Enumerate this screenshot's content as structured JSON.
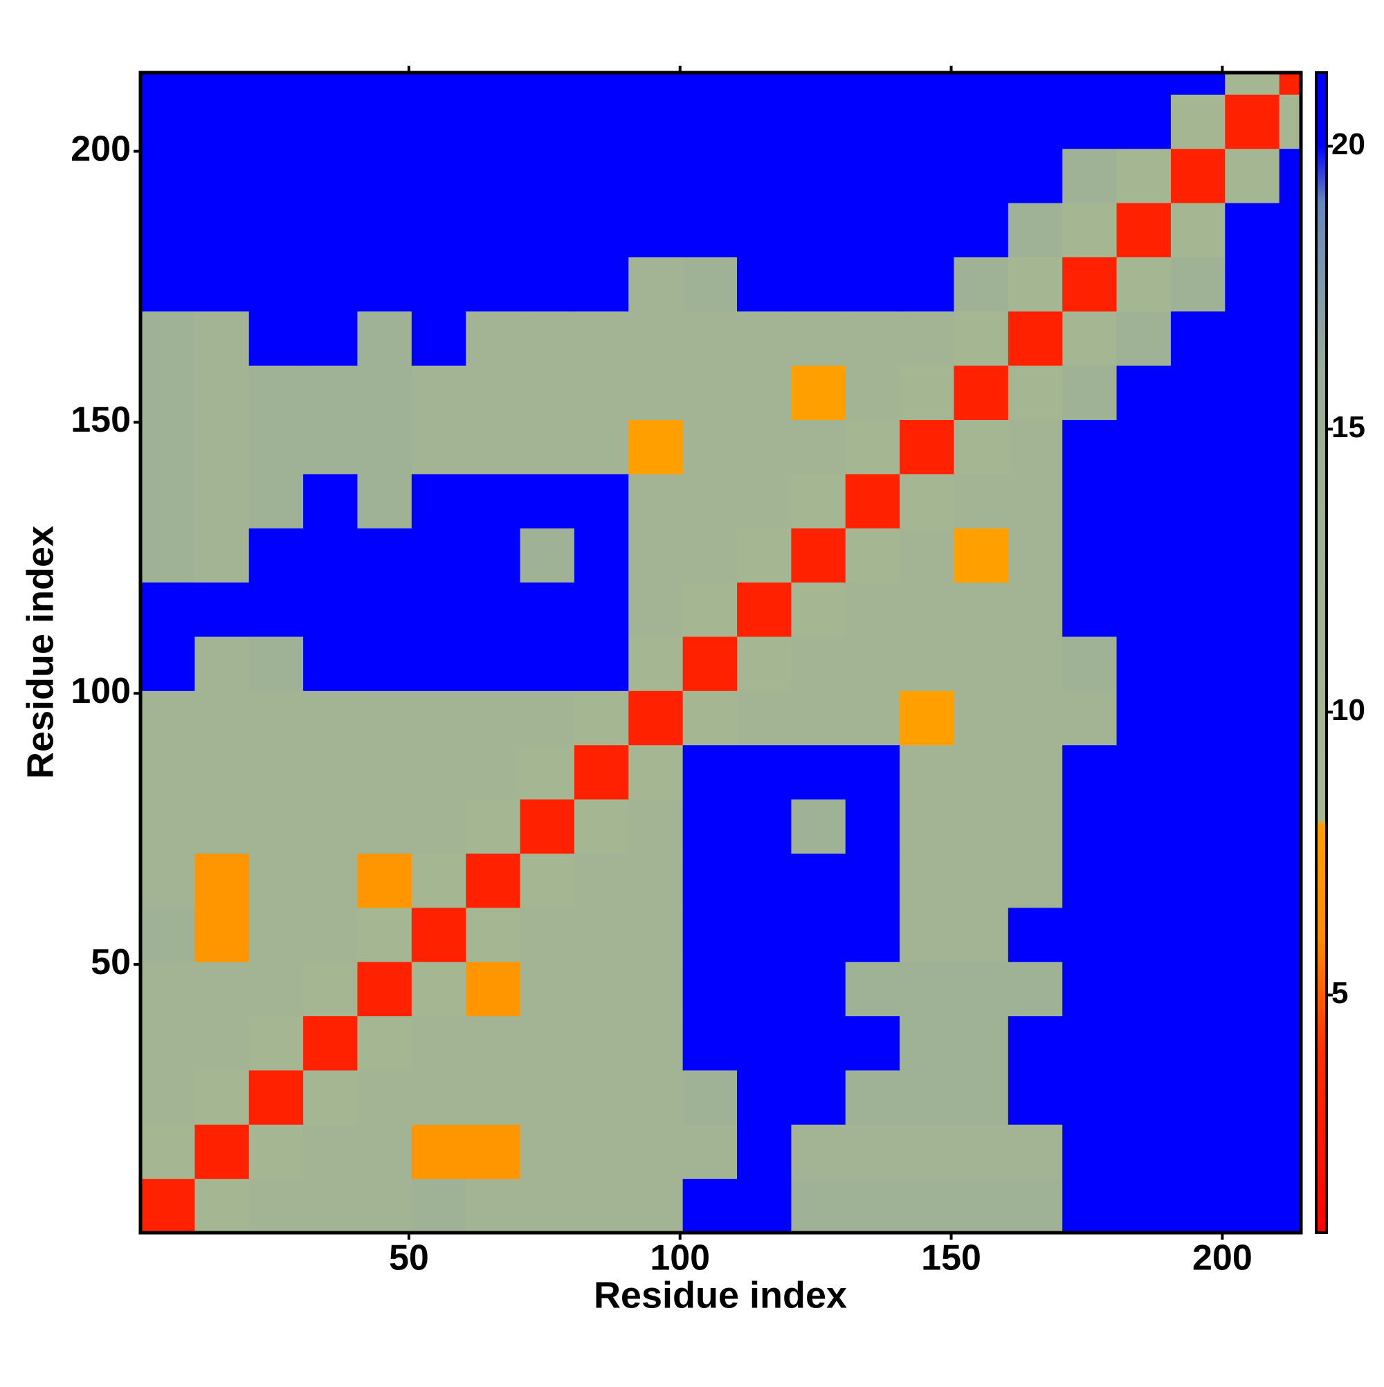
{
  "chart_data": {
    "type": "heatmap",
    "x_label": "Residue index",
    "y_label": "Residue index",
    "bins": [
      0.5,
      10.5,
      20.5,
      30.5,
      40.5,
      50.5,
      60.5,
      70.5,
      80.5,
      90.5,
      100.5,
      110.5,
      120.5,
      130.5,
      140.5,
      150.5,
      160.5,
      170.5,
      180.5,
      190.5,
      200.5,
      210.5,
      214.5
    ],
    "xlim": [
      0.5,
      214.5
    ],
    "ylim": [
      0.5,
      214.5
    ],
    "xticks": [
      50,
      100,
      150,
      200
    ],
    "yticks": [
      50,
      100,
      150,
      200
    ],
    "clim": [
      0.8,
      21.3
    ],
    "cticks": [
      5,
      10,
      15,
      20
    ],
    "colorscale": [
      [
        0.8,
        "#ff0000"
      ],
      [
        4,
        "#ff3000"
      ],
      [
        6,
        "#ff8c00"
      ],
      [
        8,
        "#ffa000"
      ],
      [
        8.1,
        "#a9b98f"
      ],
      [
        16,
        "#9aae9a"
      ],
      [
        19,
        "#6688bb"
      ],
      [
        20,
        "#0000ff"
      ],
      [
        21.3,
        "#0000ff"
      ]
    ],
    "z": [
      [
        3,
        10,
        12,
        12,
        12,
        13,
        12,
        12,
        12,
        12,
        21,
        21,
        13,
        13,
        13,
        13,
        13,
        21,
        21,
        21,
        21,
        21
      ],
      [
        10,
        3,
        10,
        12,
        12,
        7,
        7,
        12,
        12,
        12,
        12,
        21,
        12,
        12,
        12,
        12,
        12,
        21,
        21,
        21,
        21,
        21
      ],
      [
        12,
        10,
        3,
        10,
        12,
        12,
        12,
        12,
        12,
        12,
        13,
        21,
        21,
        13,
        13,
        13,
        21,
        21,
        21,
        21,
        21,
        21
      ],
      [
        12,
        12,
        10,
        3,
        10,
        12,
        12,
        12,
        12,
        12,
        21,
        21,
        21,
        21,
        13,
        13,
        21,
        21,
        21,
        21,
        21,
        21
      ],
      [
        12,
        12,
        12,
        10,
        3,
        10,
        7,
        12,
        12,
        12,
        21,
        21,
        21,
        13,
        13,
        13,
        13,
        21,
        21,
        21,
        21,
        21
      ],
      [
        13,
        7,
        12,
        12,
        10,
        3,
        10,
        12,
        12,
        12,
        21,
        21,
        21,
        21,
        12,
        12,
        21,
        21,
        21,
        21,
        21,
        21
      ],
      [
        12,
        7,
        12,
        12,
        7,
        10,
        3,
        10,
        12,
        12,
        21,
        21,
        21,
        21,
        12,
        12,
        12,
        21,
        21,
        21,
        21,
        21
      ],
      [
        12,
        12,
        12,
        12,
        12,
        12,
        10,
        3,
        10,
        12,
        21,
        21,
        13,
        21,
        12,
        12,
        12,
        21,
        21,
        21,
        21,
        21
      ],
      [
        12,
        12,
        12,
        12,
        12,
        12,
        12,
        10,
        3,
        10,
        21,
        21,
        21,
        21,
        12,
        12,
        12,
        21,
        21,
        21,
        21,
        21
      ],
      [
        12,
        12,
        12,
        12,
        12,
        12,
        12,
        12,
        10,
        3,
        10,
        12,
        12,
        12,
        8,
        12,
        12,
        12,
        21,
        21,
        21,
        21
      ],
      [
        21,
        12,
        13,
        21,
        21,
        21,
        21,
        21,
        21,
        10,
        3,
        10,
        12,
        12,
        12,
        12,
        12,
        13,
        21,
        21,
        21,
        21
      ],
      [
        21,
        21,
        21,
        21,
        21,
        21,
        21,
        21,
        21,
        12,
        10,
        3,
        10,
        12,
        12,
        12,
        12,
        21,
        21,
        21,
        21,
        21
      ],
      [
        13,
        12,
        21,
        21,
        21,
        21,
        21,
        13,
        21,
        12,
        12,
        10,
        3,
        10,
        12,
        8,
        12,
        21,
        21,
        21,
        21,
        21
      ],
      [
        13,
        12,
        13,
        21,
        13,
        21,
        21,
        21,
        21,
        12,
        12,
        12,
        10,
        3,
        10,
        12,
        12,
        21,
        21,
        21,
        21,
        21
      ],
      [
        13,
        12,
        13,
        13,
        13,
        12,
        12,
        12,
        12,
        8,
        12,
        12,
        12,
        10,
        3,
        10,
        12,
        21,
        21,
        21,
        21,
        21
      ],
      [
        13,
        12,
        13,
        13,
        13,
        12,
        12,
        12,
        12,
        12,
        12,
        12,
        8,
        12,
        10,
        3,
        10,
        13,
        21,
        21,
        21,
        21
      ],
      [
        13,
        12,
        21,
        21,
        13,
        21,
        12,
        12,
        12,
        12,
        12,
        12,
        12,
        12,
        12,
        10,
        3,
        10,
        13,
        21,
        21,
        21
      ],
      [
        21,
        21,
        21,
        21,
        21,
        21,
        21,
        21,
        21,
        12,
        13,
        21,
        21,
        21,
        21,
        13,
        10,
        3,
        10,
        13,
        21,
        21
      ],
      [
        21,
        21,
        21,
        21,
        21,
        21,
        21,
        21,
        21,
        21,
        21,
        21,
        21,
        21,
        21,
        21,
        13,
        10,
        3,
        10,
        21,
        21
      ],
      [
        21,
        21,
        21,
        21,
        21,
        21,
        21,
        21,
        21,
        21,
        21,
        21,
        21,
        21,
        21,
        21,
        21,
        13,
        10,
        3,
        10,
        21
      ],
      [
        21,
        21,
        21,
        21,
        21,
        21,
        21,
        21,
        21,
        21,
        21,
        21,
        21,
        21,
        21,
        21,
        21,
        21,
        21,
        10,
        3,
        10
      ],
      [
        21,
        21,
        21,
        21,
        21,
        21,
        21,
        21,
        21,
        21,
        21,
        21,
        21,
        21,
        21,
        21,
        21,
        21,
        21,
        21,
        10,
        3
      ]
    ]
  }
}
